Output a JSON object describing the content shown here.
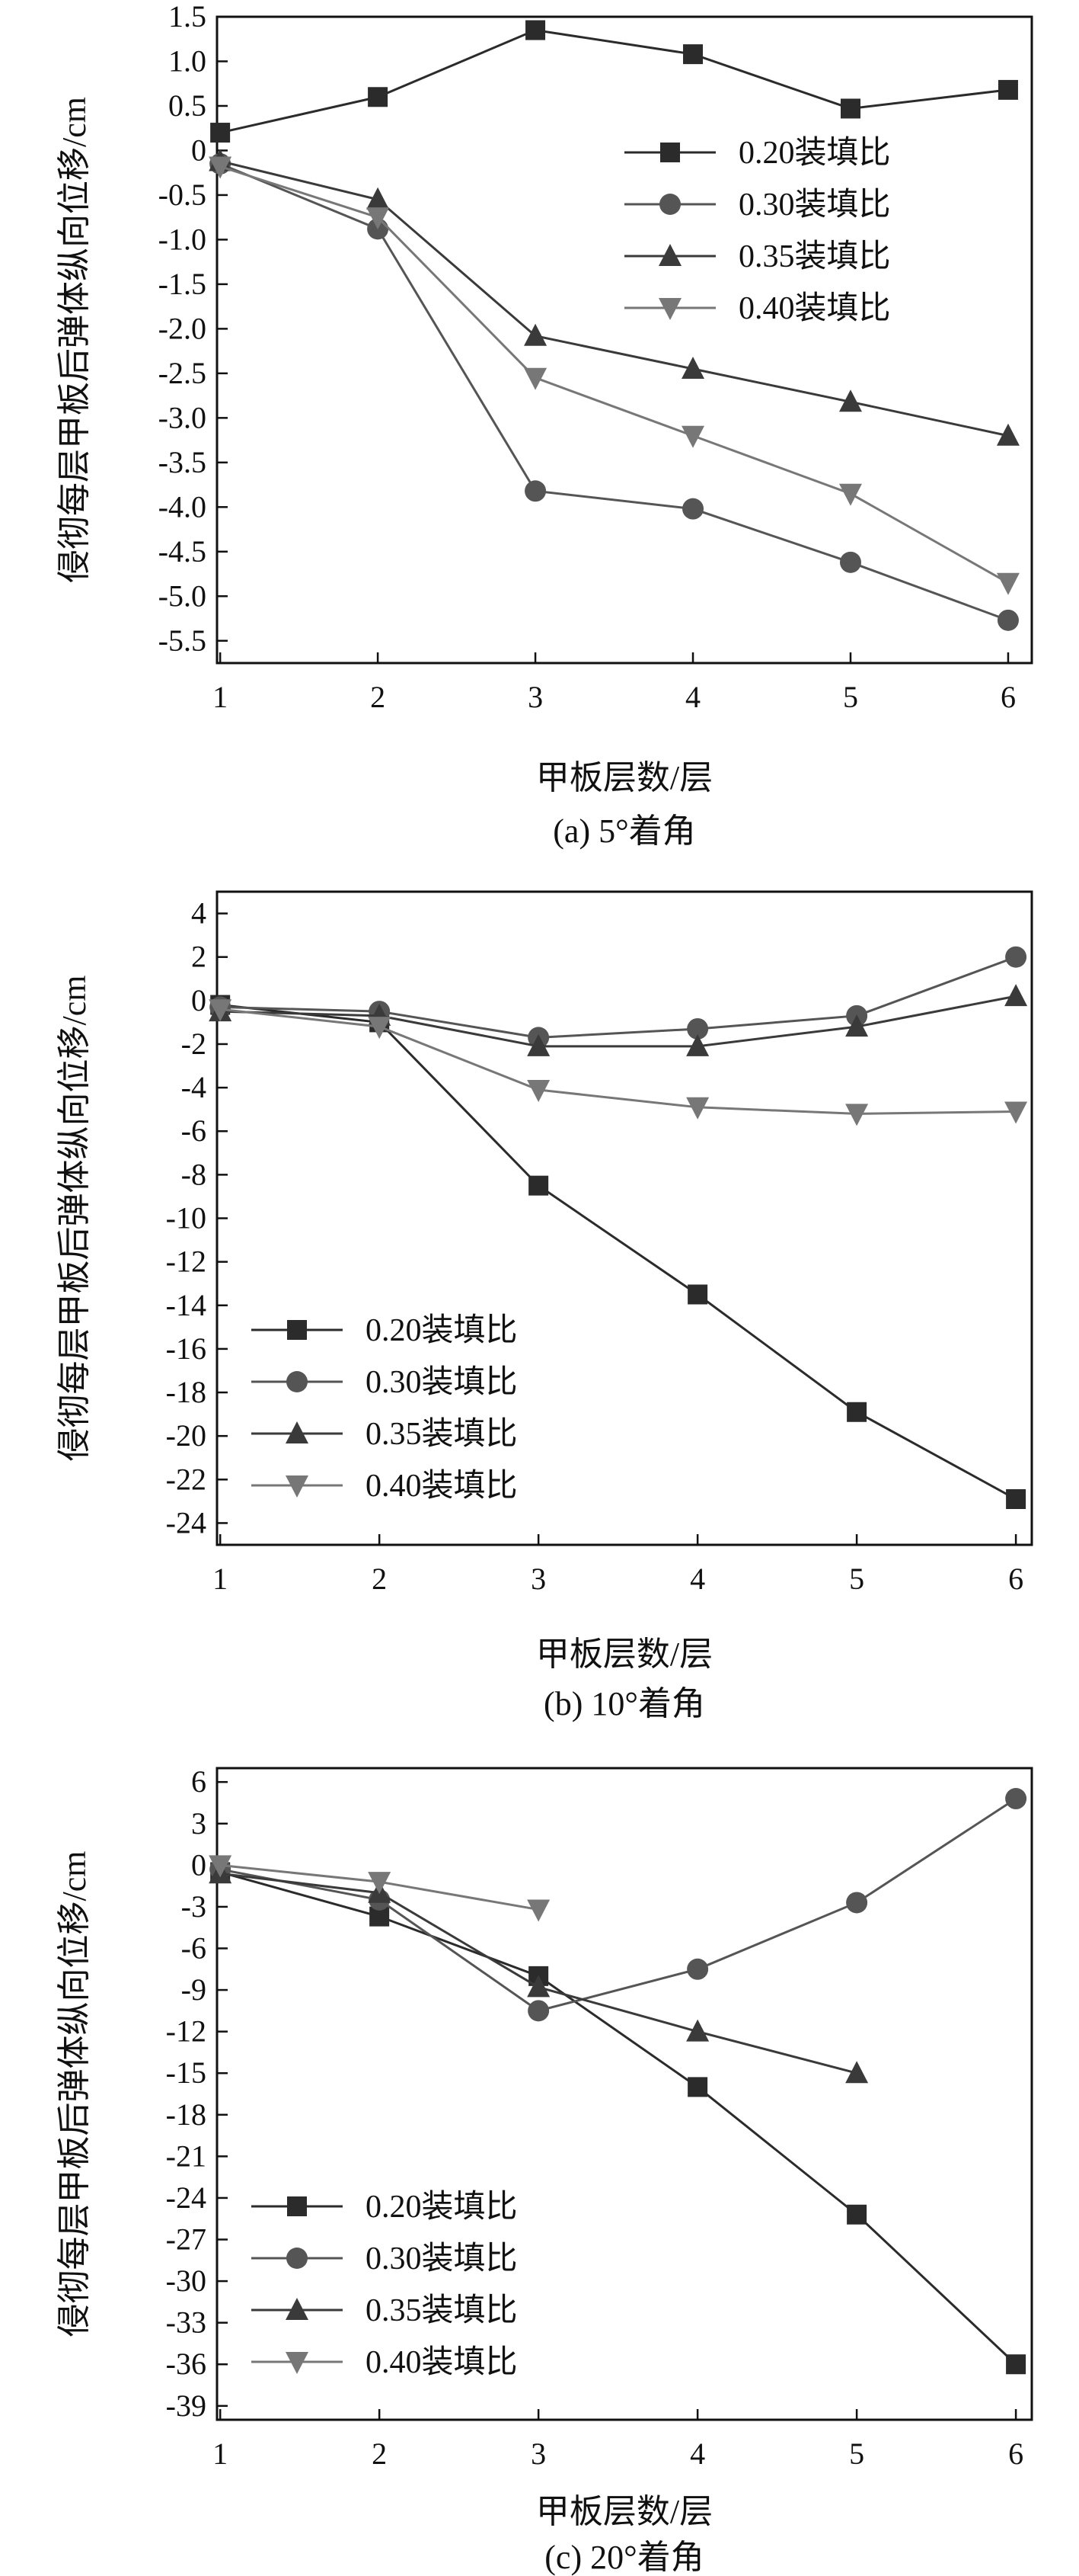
{
  "chart_data": [
    {
      "type": "line",
      "caption": "(a) 5°着角",
      "xlabel": "甲板层数/层",
      "ylabel": "侵彻每层甲板后弹体纵向位移/cm",
      "x": [
        1,
        2,
        3,
        4,
        5,
        6
      ],
      "xlim": [
        0.98,
        6.15
      ],
      "ylim": [
        -5.75,
        1.5
      ],
      "xticks": [
        "1",
        "2",
        "3",
        "4",
        "5",
        "6"
      ],
      "yticks": [
        1.5,
        1.0,
        0.5,
        0,
        -0.5,
        -1.0,
        -1.5,
        -2.0,
        -2.5,
        -3.0,
        -3.5,
        -4.0,
        -4.5,
        -5.0,
        -5.5
      ],
      "ytick_labels": [
        "1.5",
        "1.0",
        "0.5",
        "0",
        "-0.5",
        "-1.0",
        "-1.5",
        "-2.0",
        "-2.5",
        "-3.0",
        "-3.5",
        "-4.0",
        "-4.5",
        "-5.0",
        "-5.5"
      ],
      "legend_position": "top-right",
      "series": [
        {
          "name": "0.20装填比",
          "marker": "square",
          "color": "#2b2b2b",
          "values": [
            0.2,
            0.6,
            1.35,
            1.08,
            0.47,
            0.68
          ]
        },
        {
          "name": "0.30装填比",
          "marker": "circle",
          "color": "#555555",
          "values": [
            -0.15,
            -0.88,
            -3.82,
            -4.02,
            -4.62,
            -5.27
          ]
        },
        {
          "name": "0.35装填比",
          "marker": "triangle-up",
          "color": "#3a3a3a",
          "values": [
            -0.12,
            -0.55,
            -2.08,
            -2.45,
            -2.82,
            -3.2
          ]
        },
        {
          "name": "0.40装填比",
          "marker": "triangle-down",
          "color": "#777777",
          "values": [
            -0.18,
            -0.75,
            -2.55,
            -3.2,
            -3.85,
            -4.85
          ]
        }
      ]
    },
    {
      "type": "line",
      "caption": "(b) 10°着角",
      "xlabel": "甲板层数/层",
      "ylabel": "侵彻每层甲板后弹体纵向位移/cm",
      "x": [
        1,
        2,
        3,
        4,
        5,
        6
      ],
      "xlim": [
        0.98,
        6.1
      ],
      "ylim": [
        -25,
        5
      ],
      "xticks": [
        "1",
        "2",
        "3",
        "4",
        "5",
        "6"
      ],
      "yticks": [
        4,
        2,
        0,
        -2,
        -4,
        -6,
        -8,
        -10,
        -12,
        -14,
        -16,
        -18,
        -20,
        -22,
        -24
      ],
      "ytick_labels": [
        "4",
        "2",
        "0",
        "-2",
        "-4",
        "-6",
        "-8",
        "-10",
        "-12",
        "-14",
        "-16",
        "-18",
        "-20",
        "-22",
        "-24"
      ],
      "legend_position": "bottom-left",
      "series": [
        {
          "name": "0.20装填比",
          "marker": "square",
          "color": "#2b2b2b",
          "values": [
            -0.2,
            -1.0,
            -8.5,
            -13.5,
            -18.9,
            -22.9
          ]
        },
        {
          "name": "0.30装填比",
          "marker": "circle",
          "color": "#555555",
          "values": [
            -0.3,
            -0.5,
            -1.7,
            -1.3,
            -0.7,
            2.0
          ]
        },
        {
          "name": "0.35装填比",
          "marker": "triangle-up",
          "color": "#3a3a3a",
          "values": [
            -0.5,
            -0.7,
            -2.1,
            -2.1,
            -1.2,
            0.2
          ]
        },
        {
          "name": "0.40装填比",
          "marker": "triangle-down",
          "color": "#777777",
          "values": [
            -0.4,
            -1.2,
            -4.1,
            -4.9,
            -5.2,
            -5.1
          ]
        }
      ]
    },
    {
      "type": "line",
      "caption": "(c) 20°着角",
      "xlabel": "甲板层数/层",
      "ylabel": "侵彻每层甲板后弹体纵向位移/cm",
      "x": [
        1,
        2,
        3,
        4,
        5,
        6
      ],
      "xlim": [
        0.98,
        6.1
      ],
      "ylim": [
        -40,
        7
      ],
      "xticks": [
        "1",
        "2",
        "3",
        "4",
        "5",
        "6"
      ],
      "yticks": [
        6,
        3,
        0,
        -3,
        -6,
        -9,
        -12,
        -15,
        -18,
        -21,
        -24,
        -27,
        -30,
        -33,
        -36,
        -39
      ],
      "ytick_labels": [
        "6",
        "3",
        "0",
        "-3",
        "-6",
        "-9",
        "-12",
        "-15",
        "-18",
        "-21",
        "-24",
        "-27",
        "-30",
        "-33",
        "-36",
        "-39"
      ],
      "legend_position": "bottom-left",
      "series": [
        {
          "name": "0.20装填比",
          "marker": "square",
          "color": "#2b2b2b",
          "values": [
            -0.5,
            -3.7,
            -8.0,
            -16.0,
            -25.2,
            -36.0
          ]
        },
        {
          "name": "0.30装填比",
          "marker": "circle",
          "color": "#555555",
          "values": [
            -0.3,
            -2.5,
            -10.5,
            -7.5,
            -2.7,
            4.8
          ]
        },
        {
          "name": "0.35装填比",
          "marker": "triangle-up",
          "color": "#3a3a3a",
          "values": [
            -0.6,
            -2.0,
            -8.8,
            -12.0,
            -15.0,
            null
          ]
        },
        {
          "name": "0.40装填比",
          "marker": "triangle-down",
          "color": "#777777",
          "values": [
            0.0,
            -1.2,
            -3.2,
            null,
            null,
            null
          ]
        }
      ]
    }
  ]
}
